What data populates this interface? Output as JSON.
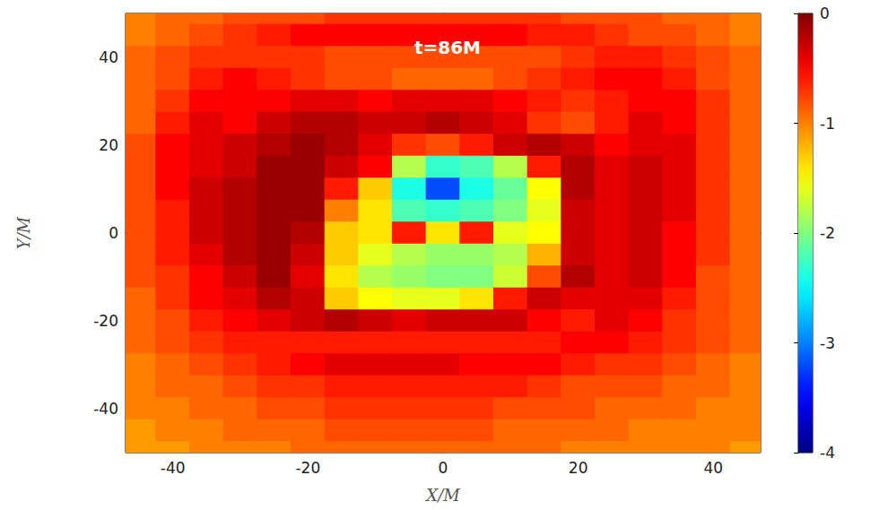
{
  "chart_data": {
    "type": "heatmap",
    "title": "t=86M",
    "x_label": "X/M",
    "y_label": "Y/M",
    "color": "jet",
    "x": [
      -45,
      -40,
      -35,
      -30,
      -25,
      -20,
      -15,
      -10,
      -5,
      0,
      5,
      10,
      15,
      20,
      25,
      30,
      35,
      40,
      45
    ],
    "y": [
      50,
      45,
      40,
      35,
      30,
      25,
      20,
      15,
      10,
      5,
      0,
      -5,
      -10,
      -15,
      -20,
      -25,
      -30,
      -35,
      -40,
      -45,
      -50
    ],
    "values": [
      [
        -1.0,
        -0.9,
        -0.9,
        -0.8,
        -0.8,
        -0.8,
        -0.7,
        -0.7,
        -0.7,
        -0.7,
        -0.7,
        -0.7,
        -0.7,
        -0.8,
        -0.8,
        -0.8,
        -0.9,
        -0.9,
        -1.0
      ],
      [
        -1.0,
        -0.9,
        -0.8,
        -0.7,
        -0.6,
        -0.5,
        -0.5,
        -0.5,
        -0.5,
        -0.5,
        -0.5,
        -0.5,
        -0.6,
        -0.6,
        -0.7,
        -0.8,
        -0.8,
        -0.9,
        -1.0
      ],
      [
        -0.9,
        -0.8,
        -0.7,
        -0.7,
        -0.7,
        -0.7,
        -0.8,
        -0.8,
        -0.8,
        -0.8,
        -0.8,
        -0.8,
        -0.8,
        -0.7,
        -0.6,
        -0.6,
        -0.7,
        -0.8,
        -0.9
      ],
      [
        -0.9,
        -0.8,
        -0.6,
        -0.5,
        -0.6,
        -0.7,
        -0.8,
        -0.8,
        -0.9,
        -0.9,
        -0.9,
        -0.8,
        -0.7,
        -0.6,
        -0.5,
        -0.5,
        -0.6,
        -0.8,
        -0.9
      ],
      [
        -0.9,
        -0.7,
        -0.5,
        -0.5,
        -0.5,
        -0.4,
        -0.4,
        -0.5,
        -0.4,
        -0.4,
        -0.4,
        -0.5,
        -0.6,
        -0.7,
        -0.6,
        -0.5,
        -0.5,
        -0.7,
        -0.9
      ],
      [
        -0.9,
        -0.6,
        -0.4,
        -0.5,
        -0.3,
        -0.2,
        -0.2,
        -0.3,
        -0.3,
        -0.2,
        -0.3,
        -0.4,
        -0.7,
        -0.8,
        -0.6,
        -0.4,
        -0.5,
        -0.7,
        -0.9
      ],
      [
        -0.8,
        -0.5,
        -0.4,
        -0.3,
        -0.2,
        -0.1,
        -0.2,
        -0.4,
        -0.7,
        -0.8,
        -0.6,
        -0.3,
        -0.2,
        -0.3,
        -0.5,
        -0.4,
        -0.4,
        -0.7,
        -0.9
      ],
      [
        -0.8,
        -0.5,
        -0.4,
        -0.3,
        -0.1,
        -0.1,
        -0.3,
        -0.5,
        -1.8,
        -2.3,
        -2.2,
        -1.8,
        -0.6,
        -0.2,
        -0.4,
        -0.3,
        -0.4,
        -0.7,
        -0.9
      ],
      [
        -0.8,
        -0.5,
        -0.3,
        -0.2,
        -0.1,
        -0.1,
        -0.6,
        -1.3,
        -2.4,
        -3.2,
        -2.4,
        -2.1,
        -1.5,
        -0.2,
        -0.4,
        -0.3,
        -0.4,
        -0.7,
        -0.9
      ],
      [
        -0.8,
        -0.6,
        -0.3,
        -0.2,
        -0.1,
        -0.1,
        -1.0,
        -1.4,
        -2.2,
        -2.3,
        -2.2,
        -2.0,
        -1.6,
        -0.3,
        -0.4,
        -0.3,
        -0.4,
        -0.7,
        -0.9
      ],
      [
        -0.8,
        -0.6,
        -0.3,
        -0.2,
        -0.1,
        -0.2,
        -1.3,
        -1.4,
        -0.6,
        -1.4,
        -0.6,
        -1.6,
        -1.5,
        -0.3,
        -0.4,
        -0.3,
        -0.5,
        -0.7,
        -0.9
      ],
      [
        -0.8,
        -0.6,
        -0.4,
        -0.2,
        -0.1,
        -0.3,
        -1.3,
        -1.6,
        -1.8,
        -1.9,
        -1.9,
        -1.8,
        -1.2,
        -0.3,
        -0.4,
        -0.3,
        -0.5,
        -0.7,
        -0.9
      ],
      [
        -0.8,
        -0.7,
        -0.5,
        -0.3,
        -0.1,
        -0.4,
        -1.4,
        -1.8,
        -1.9,
        -2.0,
        -2.0,
        -1.7,
        -0.8,
        -0.2,
        -0.4,
        -0.3,
        -0.5,
        -0.8,
        -0.9
      ],
      [
        -0.9,
        -0.7,
        -0.5,
        -0.4,
        -0.2,
        -0.3,
        -1.3,
        -1.5,
        -1.6,
        -1.6,
        -1.4,
        -0.6,
        -0.3,
        -0.4,
        -0.4,
        -0.4,
        -0.6,
        -0.8,
        -0.9
      ],
      [
        -0.9,
        -0.8,
        -0.6,
        -0.5,
        -0.4,
        -0.3,
        -0.2,
        -0.3,
        -0.4,
        -0.3,
        -0.3,
        -0.3,
        -0.5,
        -0.6,
        -0.4,
        -0.5,
        -0.7,
        -0.8,
        -0.9
      ],
      [
        -0.9,
        -0.8,
        -0.7,
        -0.6,
        -0.6,
        -0.6,
        -0.6,
        -0.6,
        -0.6,
        -0.6,
        -0.6,
        -0.6,
        -0.6,
        -0.5,
        -0.5,
        -0.6,
        -0.7,
        -0.8,
        -0.9
      ],
      [
        -1.0,
        -0.9,
        -0.8,
        -0.7,
        -0.6,
        -0.5,
        -0.4,
        -0.4,
        -0.4,
        -0.4,
        -0.5,
        -0.5,
        -0.5,
        -0.6,
        -0.7,
        -0.7,
        -0.8,
        -0.9,
        -1.0
      ],
      [
        -1.0,
        -0.9,
        -0.9,
        -0.8,
        -0.7,
        -0.7,
        -0.6,
        -0.6,
        -0.6,
        -0.6,
        -0.6,
        -0.6,
        -0.7,
        -0.8,
        -0.8,
        -0.8,
        -0.9,
        -0.9,
        -1.0
      ],
      [
        -1.0,
        -1.0,
        -0.9,
        -0.9,
        -0.8,
        -0.8,
        -0.7,
        -0.7,
        -0.7,
        -0.7,
        -0.7,
        -0.8,
        -0.8,
        -0.8,
        -0.9,
        -0.9,
        -0.9,
        -1.0,
        -1.0
      ],
      [
        -1.1,
        -1.0,
        -1.0,
        -0.9,
        -0.9,
        -0.9,
        -0.8,
        -0.8,
        -0.8,
        -0.8,
        -0.8,
        -0.9,
        -0.9,
        -0.9,
        -0.9,
        -1.0,
        -1.0,
        -1.0,
        -1.0
      ],
      [
        -1.1,
        -1.1,
        -1.0,
        -1.0,
        -1.0,
        -0.9,
        -0.9,
        -0.9,
        -0.9,
        -0.9,
        -0.9,
        -0.9,
        -0.9,
        -1.0,
        -1.0,
        -1.0,
        -1.0,
        -1.0,
        -1.1
      ]
    ],
    "xlim": [
      -47,
      47
    ],
    "xticks": [
      -40,
      -20,
      0,
      20,
      40
    ],
    "ylim": [
      -50,
      50
    ],
    "yticks": [
      -40,
      -20,
      0,
      20,
      40
    ],
    "colorbar": {
      "range": [
        -4,
        0
      ],
      "ticks": [
        0,
        -1,
        -2,
        -3,
        -4
      ]
    }
  }
}
